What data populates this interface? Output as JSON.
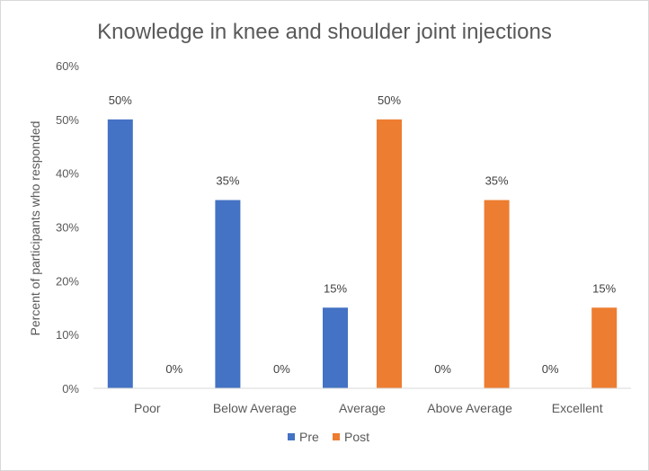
{
  "chart_data": {
    "type": "bar",
    "title": "Knowledge in knee and shoulder joint injections",
    "xlabel": "",
    "ylabel": "Percent of participants who responded",
    "ylim": [
      0,
      60
    ],
    "yticks": [
      "0%",
      "10%",
      "20%",
      "30%",
      "40%",
      "50%",
      "60%"
    ],
    "categories": [
      "Poor",
      "Below Average",
      "Average",
      "Above Average",
      "Excellent"
    ],
    "series": [
      {
        "name": "Pre",
        "color": "#4472c4",
        "values": [
          50,
          35,
          15,
          0,
          0
        ],
        "labels": [
          "50%",
          "35%",
          "15%",
          "0%",
          "0%"
        ]
      },
      {
        "name": "Post",
        "color": "#ed7d31",
        "values": [
          0,
          0,
          50,
          35,
          15
        ],
        "labels": [
          "0%",
          "0%",
          "50%",
          "35%",
          "15%"
        ]
      }
    ],
    "grid": false,
    "legend": "bottom"
  }
}
